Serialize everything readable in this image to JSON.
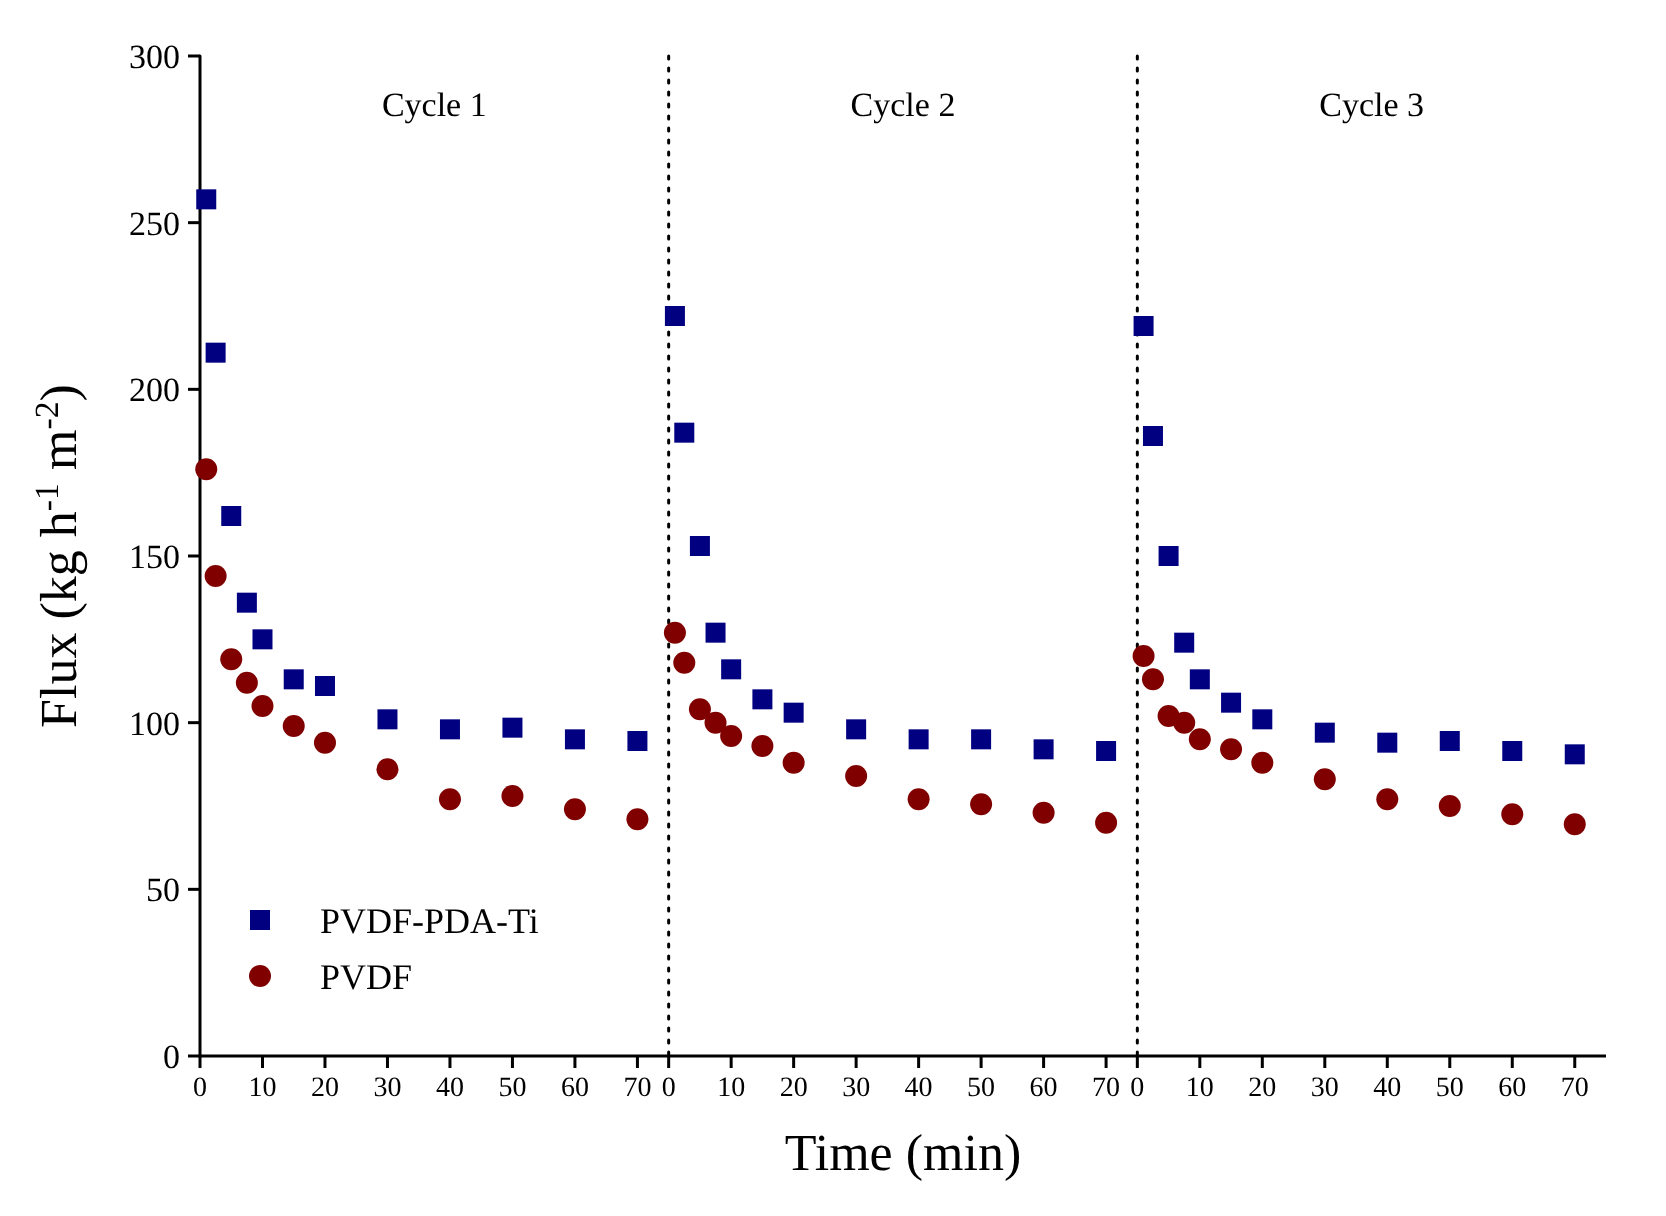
{
  "chart_data": [
    {
      "type": "scatter",
      "title": "Cycle 1",
      "ylabel": "Flux (kg h$^{-1}$ m$^{-2}$)",
      "legend": "bottom left",
      "x": [
        1,
        2.5,
        5,
        7.5,
        10,
        15,
        20,
        30,
        40,
        50,
        60,
        70
      ],
      "xlim": [
        0,
        75
      ],
      "xticks": [
        0,
        10,
        20,
        30,
        40,
        50,
        60,
        70
      ],
      "ylim": [
        0,
        300
      ],
      "yticks": [
        0,
        50,
        100,
        150,
        200,
        250,
        300
      ],
      "series": [
        {
          "name": "PVDF-PDA-Ti",
          "color": "#000080",
          "marker": "square",
          "values": [
            257,
            211,
            162,
            136,
            125,
            113,
            111,
            101,
            98,
            98.5,
            95,
            94.5
          ]
        },
        {
          "name": "PVDF",
          "color": "#800000",
          "marker": "circle",
          "values": [
            176,
            144,
            119,
            112,
            105,
            99,
            94,
            86,
            77,
            78,
            74,
            71
          ]
        }
      ]
    },
    {
      "type": "scatter",
      "title": "Cycle 2",
      "xlabel": "Time (min)",
      "tick_labels": "x",
      "x": [
        1,
        2.5,
        5,
        7.5,
        10,
        15,
        20,
        30,
        40,
        50,
        60,
        70
      ],
      "xlim": [
        0,
        75
      ],
      "xticks": [
        0,
        10,
        20,
        30,
        40,
        50,
        60,
        70
      ],
      "ylim": [
        0,
        300
      ],
      "series": [
        {
          "color": "#000080",
          "marker": "square",
          "values": [
            222,
            187,
            153,
            127,
            116,
            107,
            103,
            98,
            95,
            95,
            92,
            91.5
          ]
        },
        {
          "color": "#800000",
          "marker": "circle",
          "values": [
            127,
            118,
            104,
            100,
            96,
            93,
            88,
            84,
            77,
            75.5,
            73,
            70
          ]
        }
      ]
    },
    {
      "type": "scatter",
      "title": "Cycle 3",
      "tick_labels": "x",
      "x": [
        1,
        2.5,
        5,
        7.5,
        10,
        15,
        20,
        30,
        40,
        50,
        60,
        70
      ],
      "xlim": [
        0,
        75
      ],
      "xticks": [
        0,
        10,
        20,
        30,
        40,
        50,
        60,
        70
      ],
      "ylim": [
        0,
        300
      ],
      "series": [
        {
          "color": "#000080",
          "marker": "square",
          "values": [
            219,
            186,
            150,
            124,
            113,
            106,
            101,
            97,
            94,
            94.5,
            91.5,
            90.5
          ]
        },
        {
          "color": "#800000",
          "marker": "circle",
          "values": [
            120,
            113,
            102,
            100,
            95,
            92,
            88,
            83,
            77,
            75,
            72.5,
            69.5
          ]
        }
      ]
    }
  ]
}
